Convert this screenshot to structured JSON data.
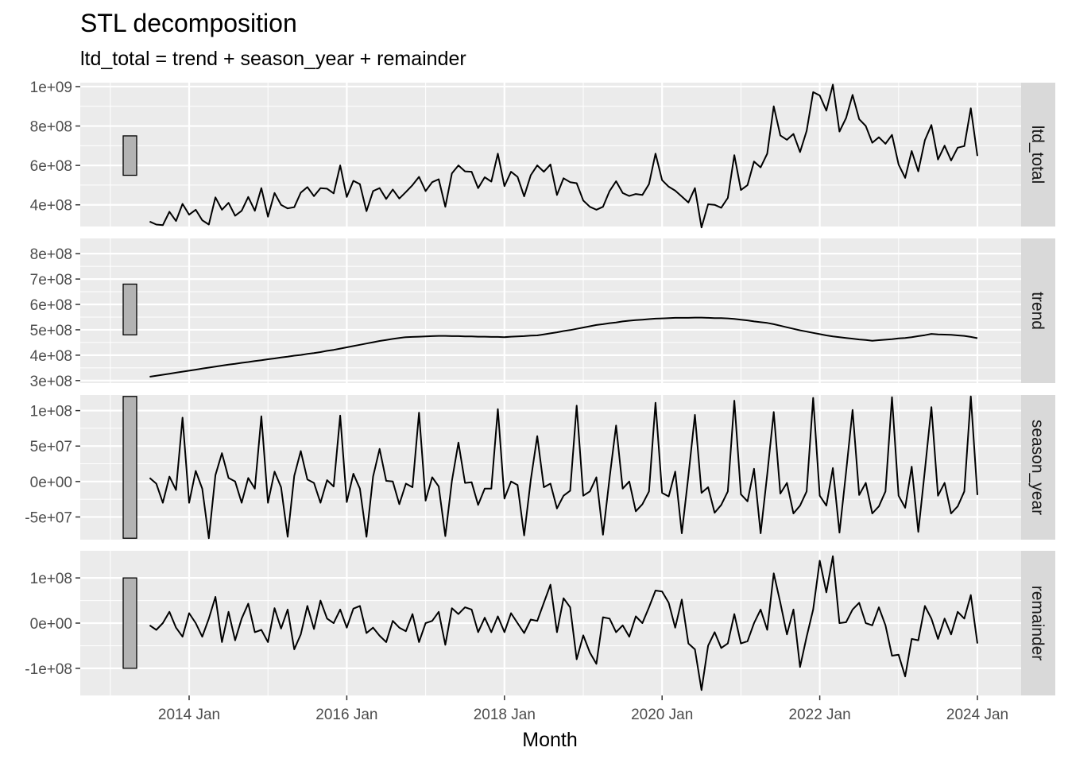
{
  "chart_data": {
    "type": "line",
    "title": "STL decomposition",
    "subtitle": "ltd_total = trend + season_year + remainder",
    "xlabel": "Month",
    "x_start": "2013 Jul",
    "x_end": "2024 Jan",
    "x_frequency": "monthly",
    "x_ticks": [
      "2014 Jan",
      "2016 Jan",
      "2018 Jan",
      "2020 Jan",
      "2022 Jan",
      "2024 Jan"
    ],
    "grid": true,
    "facets": [
      {
        "name": "ltd_total",
        "ylim": [
          290000000.0,
          1020000000.0
        ],
        "y_ticks": [
          {
            "value": 400000000.0,
            "label": "4e+08"
          },
          {
            "value": 600000000.0,
            "label": "6e+08"
          },
          {
            "value": 800000000.0,
            "label": "8e+08"
          },
          {
            "value": 1000000000.0,
            "label": "1e+09"
          }
        ],
        "scale_bar": [
          550000000.0,
          750000000.0
        ],
        "values": [
          315000000,
          300000000,
          297000000,
          365000000,
          318000000,
          405000000,
          350000000,
          375000000,
          322000000,
          300000000,
          438000000,
          375000000,
          410000000,
          345000000,
          370000000,
          440000000,
          370000000,
          485000000,
          340000000,
          460000000,
          400000000,
          382000000,
          388000000,
          462000000,
          490000000,
          444000000,
          485000000,
          482000000,
          458000000,
          600000000,
          440000000,
          522000000,
          505000000,
          368000000,
          470000000,
          485000000,
          430000000,
          478000000,
          432000000,
          465000000,
          500000000,
          542000000,
          470000000,
          515000000,
          530000000,
          390000000,
          560000000,
          600000000,
          570000000,
          568000000,
          485000000,
          540000000,
          518000000,
          660000000,
          495000000,
          568000000,
          542000000,
          443000000,
          550000000,
          600000000,
          568000000,
          605000000,
          450000000,
          535000000,
          515000000,
          510000000,
          422000000,
          390000000,
          375000000,
          390000000,
          470000000,
          520000000,
          460000000,
          445000000,
          455000000,
          450000000,
          505000000,
          660000000,
          525000000,
          492000000,
          472000000,
          442000000,
          412000000,
          485000000,
          285000000,
          403000000,
          400000000,
          385000000,
          435000000,
          652000000,
          475000000,
          500000000,
          620000000,
          590000000,
          660000000,
          900000000,
          752000000,
          730000000,
          760000000,
          668000000,
          775000000,
          972000000,
          955000000,
          878000000,
          1010000000,
          772000000,
          840000000,
          958000000,
          835000000,
          800000000,
          715000000,
          743000000,
          710000000,
          755000000,
          605000000,
          537000000,
          673000000,
          570000000,
          728000000,
          805000000,
          630000000,
          700000000,
          625000000,
          690000000,
          698000000,
          890000000,
          648000000
        ]
      },
      {
        "name": "trend",
        "ylim": [
          290000000.0,
          860000000.0
        ],
        "y_ticks": [
          {
            "value": 300000000.0,
            "label": "3e+08"
          },
          {
            "value": 400000000.0,
            "label": "4e+08"
          },
          {
            "value": 500000000.0,
            "label": "5e+08"
          },
          {
            "value": 600000000.0,
            "label": "6e+08"
          },
          {
            "value": 700000000.0,
            "label": "7e+08"
          },
          {
            "value": 800000000.0,
            "label": "8e+08"
          }
        ],
        "scale_bar": [
          480000000.0,
          680000000.0
        ],
        "values": [
          315000000,
          319000000,
          323000000,
          327000000,
          331000000,
          335000000,
          339000000,
          343000000,
          347000000,
          351000000,
          355000000,
          359000000,
          363000000,
          366000000,
          370000000,
          373000000,
          377000000,
          380000000,
          384000000,
          387000000,
          391000000,
          394000000,
          398000000,
          401000000,
          405000000,
          408000000,
          412000000,
          417000000,
          421000000,
          426000000,
          431000000,
          436000000,
          441000000,
          446000000,
          451000000,
          456000000,
          460000000,
          464000000,
          468000000,
          471000000,
          472000000,
          473000000,
          474000000,
          475000000,
          476000000,
          476000000,
          475000000,
          475000000,
          474000000,
          474000000,
          473000000,
          473000000,
          472000000,
          472000000,
          471000000,
          473000000,
          474000000,
          475000000,
          477000000,
          478000000,
          482000000,
          486000000,
          490000000,
          495000000,
          499000000,
          504000000,
          509000000,
          514000000,
          519000000,
          522000000,
          526000000,
          529000000,
          533000000,
          536000000,
          538000000,
          540000000,
          542000000,
          544000000,
          545000000,
          546000000,
          547000000,
          547000000,
          547000000,
          548000000,
          548000000,
          547000000,
          546000000,
          546000000,
          545000000,
          543000000,
          540000000,
          537000000,
          533000000,
          530000000,
          527000000,
          522000000,
          516000000,
          510000000,
          504000000,
          498000000,
          493000000,
          488000000,
          483000000,
          478000000,
          474000000,
          471000000,
          468000000,
          465000000,
          462000000,
          460000000,
          457000000,
          459000000,
          461000000,
          463000000,
          466000000,
          468000000,
          471000000,
          475000000,
          479000000,
          484000000,
          482000000,
          481000000,
          480000000,
          478000000,
          476000000,
          472000000,
          467000000
        ]
      },
      {
        "name": "season_year",
        "ylim": [
          -82000000.0,
          122000000.0
        ],
        "y_ticks": [
          {
            "value": -50000000.0,
            "label": "-5e+07"
          },
          {
            "value": 0,
            "label": "0e+00"
          },
          {
            "value": 50000000.0,
            "label": "5e+07"
          },
          {
            "value": 100000000.0,
            "label": "1e+08"
          }
        ],
        "scale_bar": [
          -80000000.0,
          120000000.0
        ],
        "values": [
          5000000,
          -3000000,
          -30000000,
          7000000,
          -12000000,
          90000000,
          -30000000,
          15000000,
          -10000000,
          -80000000,
          9000000,
          40000000,
          5000000,
          0,
          -30000000,
          5000000,
          -10000000,
          92000000,
          -30000000,
          14000000,
          -8000000,
          -78000000,
          8000000,
          43000000,
          3000000,
          -2000000,
          -30000000,
          2000000,
          -7000000,
          93000000,
          -29000000,
          11000000,
          -10000000,
          -78000000,
          7000000,
          46000000,
          1000000,
          0,
          -32000000,
          -3000000,
          -8000000,
          97000000,
          -27000000,
          6000000,
          -7000000,
          -77000000,
          1000000,
          55000000,
          -2000000,
          -1000000,
          -33000000,
          -10000000,
          -10000000,
          102000000,
          -24000000,
          0,
          -5000000,
          -76000000,
          2000000,
          64000000,
          -8000000,
          -3000000,
          -38000000,
          -20000000,
          -13000000,
          107000000,
          -20000000,
          -14000000,
          6000000,
          -75000000,
          5000000,
          79000000,
          -10000000,
          0,
          -42000000,
          -32000000,
          -14000000,
          111000000,
          -16000000,
          -21000000,
          14000000,
          -73000000,
          8000000,
          94000000,
          -16000000,
          -8000000,
          -44000000,
          -33000000,
          -14000000,
          114000000,
          -18000000,
          -28000000,
          18000000,
          -73000000,
          10000000,
          98000000,
          -17000000,
          -2000000,
          -45000000,
          -34000000,
          -14000000,
          118000000,
          -20000000,
          -34000000,
          19000000,
          -72000000,
          13000000,
          101000000,
          -19000000,
          -2000000,
          -45000000,
          -35000000,
          -14000000,
          119000000,
          -20000000,
          -37000000,
          21000000,
          -71000000,
          16000000,
          105000000,
          -20000000,
          -2000000,
          -45000000,
          -35000000,
          -14000000,
          120000000,
          -19000000
        ]
      },
      {
        "name": "remainder",
        "ylim": [
          -160000000.0,
          160000000.0
        ],
        "y_ticks": [
          {
            "value": -100000000.0,
            "label": "-1e+08"
          },
          {
            "value": 0,
            "label": "0e+00"
          },
          {
            "value": 100000000.0,
            "label": "1e+08"
          }
        ],
        "scale_bar": [
          -100000000.0,
          100000000.0
        ],
        "values": [
          -5000000,
          -15000000,
          0,
          25000000,
          -10000000,
          -30000000,
          22000000,
          0,
          -30000000,
          10000000,
          58000000,
          -42000000,
          25000000,
          -38000000,
          10000000,
          43000000,
          -20000000,
          -15000000,
          -42000000,
          33000000,
          -12000000,
          30000000,
          -58000000,
          -25000000,
          38000000,
          -13000000,
          50000000,
          10000000,
          0,
          30000000,
          -10000000,
          32000000,
          38000000,
          -22000000,
          -10000000,
          -28000000,
          -42000000,
          5000000,
          -10000000,
          -18000000,
          20000000,
          -42000000,
          0,
          5000000,
          25000000,
          -48000000,
          33000000,
          20000000,
          35000000,
          30000000,
          -20000000,
          12000000,
          -20000000,
          15000000,
          -20000000,
          22000000,
          0,
          -22000000,
          8000000,
          5000000,
          45000000,
          85000000,
          -20000000,
          55000000,
          35000000,
          -80000000,
          -27000000,
          -65000000,
          -90000000,
          13000000,
          10000000,
          -20000000,
          -5000000,
          -30000000,
          15000000,
          0,
          35000000,
          72000000,
          70000000,
          45000000,
          -10000000,
          52000000,
          -45000000,
          -58000000,
          -148000000,
          -50000000,
          -20000000,
          -55000000,
          -45000000,
          20000000,
          -45000000,
          -40000000,
          0,
          30000000,
          -15000000,
          110000000,
          45000000,
          -25000000,
          30000000,
          -97000000,
          -30000000,
          30000000,
          138000000,
          68000000,
          148000000,
          0,
          2000000,
          30000000,
          45000000,
          0,
          -5000000,
          35000000,
          -5000000,
          -72000000,
          -70000000,
          -118000000,
          -35000000,
          -38000000,
          38000000,
          10000000,
          -35000000,
          10000000,
          -25000000,
          25000000,
          10000000,
          62000000,
          -45000000
        ]
      }
    ]
  }
}
